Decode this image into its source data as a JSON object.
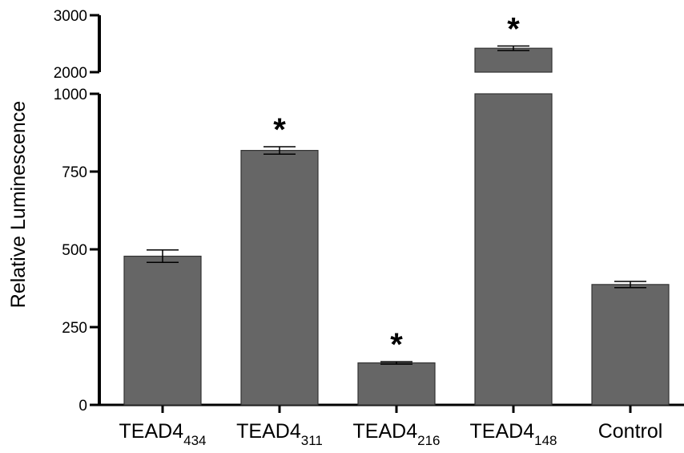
{
  "chart_data": {
    "type": "bar",
    "ylabel": "Relative Luminescence",
    "categories": [
      {
        "name": "TEAD4",
        "sub": "434"
      },
      {
        "name": "TEAD4",
        "sub": "311"
      },
      {
        "name": "TEAD4",
        "sub": "216"
      },
      {
        "name": "TEAD4",
        "sub": "148"
      },
      {
        "name": "Control",
        "sub": ""
      }
    ],
    "values": [
      478,
      818,
      135,
      2420,
      387
    ],
    "errors": [
      20,
      12,
      4,
      40,
      10
    ],
    "significance": [
      "",
      "*",
      "*",
      "*",
      ""
    ],
    "y_axis": {
      "broken": true,
      "lower_segment": {
        "range": [
          0,
          1000
        ],
        "ticks": [
          0,
          250,
          500,
          750,
          1000
        ]
      },
      "upper_segment": {
        "range": [
          2000,
          3000
        ],
        "ticks": [
          2000,
          3000
        ]
      }
    },
    "bar_color": "#666666",
    "grid": false,
    "legend": "none"
  }
}
